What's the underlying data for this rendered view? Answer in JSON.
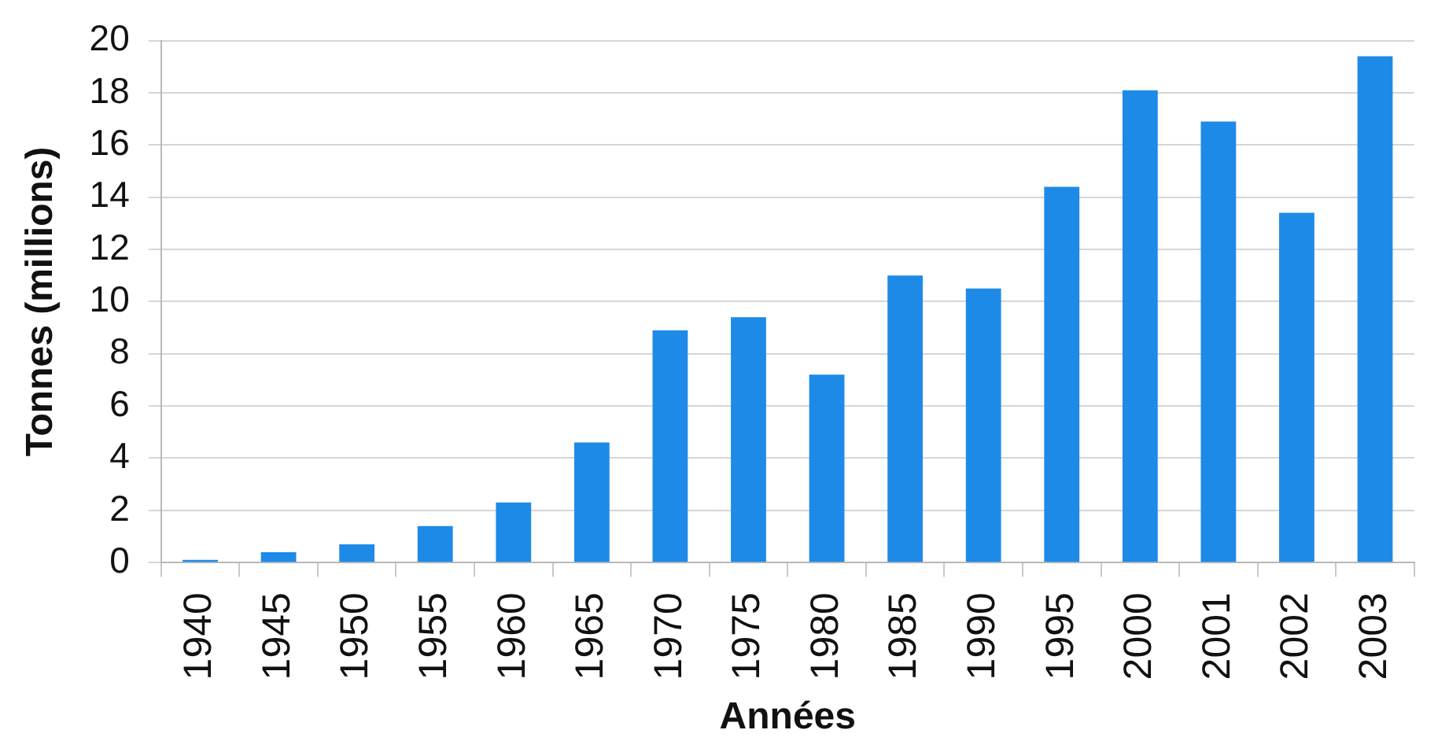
{
  "chart_data": {
    "type": "bar",
    "xlabel": "Années",
    "ylabel": "Tonnes (millions)",
    "categories": [
      "1940",
      "1945",
      "1950",
      "1955",
      "1960",
      "1965",
      "1970",
      "1975",
      "1980",
      "1985",
      "1990",
      "1995",
      "2000",
      "2001",
      "2002",
      "2003"
    ],
    "values": [
      0.1,
      0.4,
      0.7,
      1.4,
      2.3,
      4.6,
      8.9,
      9.4,
      7.2,
      11.0,
      10.5,
      14.4,
      18.1,
      16.9,
      13.4,
      19.4
    ],
    "color": "#1e8ae8",
    "ylim": [
      0,
      20
    ],
    "yticks": [
      0,
      2,
      4,
      6,
      8,
      10,
      12,
      14,
      16,
      18,
      20
    ],
    "grid": "y",
    "legend": false
  }
}
